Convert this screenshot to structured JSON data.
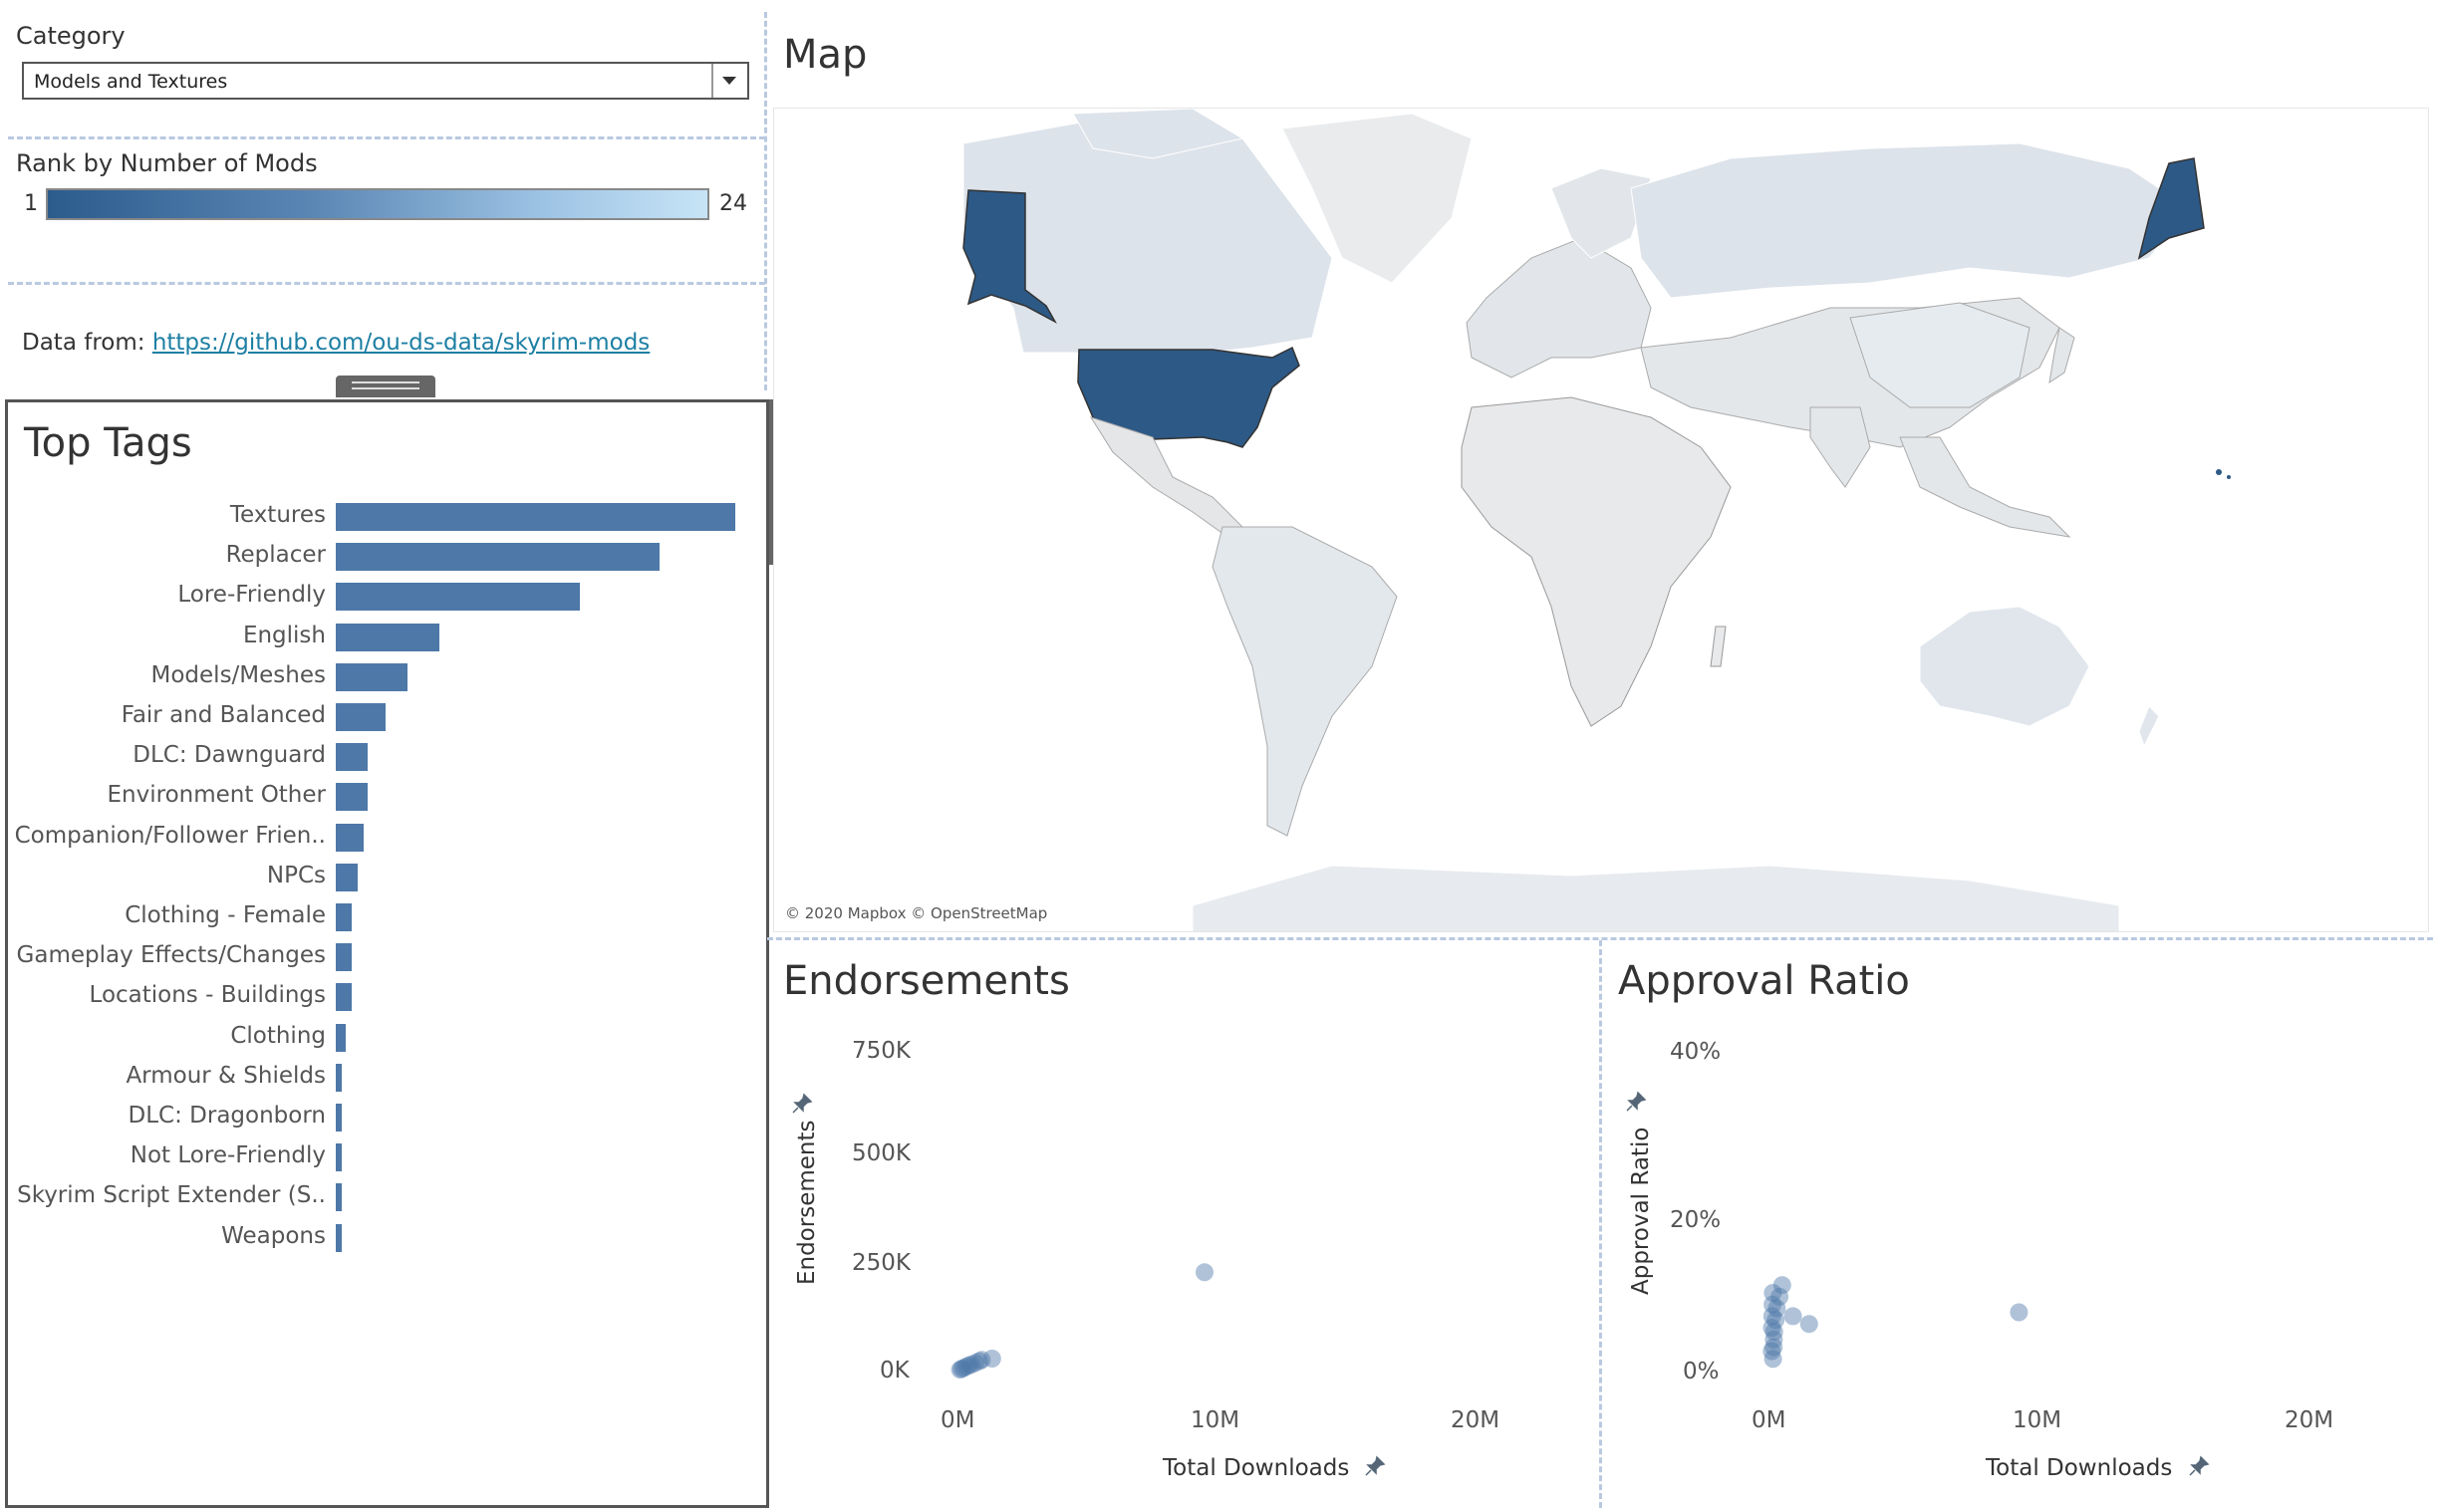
{
  "filters": {
    "category_label": "Category",
    "category_value": "Models and Textures",
    "rank_label": "Rank by Number of Mods",
    "rank_min": "1",
    "rank_max": "24",
    "data_from_prefix": "Data from: ",
    "data_from_link": "https://github.com/ou-ds-data/skyrim-mods"
  },
  "top_tags": {
    "title": "Top Tags",
    "bar_color": "#4e78a8",
    "tags": [
      {
        "label": "Textures",
        "value": 100
      },
      {
        "label": "Replacer",
        "value": 81
      },
      {
        "label": "Lore-Friendly",
        "value": 61
      },
      {
        "label": "English",
        "value": 26
      },
      {
        "label": "Models/Meshes",
        "value": 18
      },
      {
        "label": "Fair and Balanced",
        "value": 12.5
      },
      {
        "label": "DLC: Dawnguard",
        "value": 8
      },
      {
        "label": "Environment Other",
        "value": 8
      },
      {
        "label": "Companion/Follower Frien..",
        "value": 7
      },
      {
        "label": "NPCs",
        "value": 5.5
      },
      {
        "label": "Clothing - Female",
        "value": 4
      },
      {
        "label": "Gameplay Effects/Changes",
        "value": 4
      },
      {
        "label": "Locations - Buildings",
        "value": 4
      },
      {
        "label": "Clothing",
        "value": 2.5
      },
      {
        "label": "Armour & Shields",
        "value": 1.5
      },
      {
        "label": "DLC: Dragonborn",
        "value": 1.5
      },
      {
        "label": "Not Lore-Friendly",
        "value": 1.5
      },
      {
        "label": "Skyrim Script Extender (S..",
        "value": 1.5
      },
      {
        "label": "Weapons",
        "value": 1.5
      }
    ]
  },
  "map": {
    "title": "Map",
    "attribution": "© 2020 Mapbox © OpenStreetMap",
    "highlight_color": "#2d5986",
    "highlighted_country": "United States"
  },
  "chart_data": [
    {
      "type": "scatter",
      "title": "Endorsements",
      "xlabel": "Total Downloads",
      "ylabel": "Endorsements",
      "x_ticks": [
        "0M",
        "10M",
        "20M"
      ],
      "y_ticks": [
        "750K",
        "500K",
        "250K",
        "0K"
      ],
      "xlim": [
        0,
        20000000
      ],
      "ylim": [
        0,
        750000
      ],
      "points": [
        {
          "x": 9500000,
          "y": 230000
        },
        {
          "x": 1300000,
          "y": 28000
        },
        {
          "x": 900000,
          "y": 25000
        },
        {
          "x": 800000,
          "y": 22000
        },
        {
          "x": 650000,
          "y": 18000
        },
        {
          "x": 500000,
          "y": 14000
        },
        {
          "x": 400000,
          "y": 12000
        },
        {
          "x": 300000,
          "y": 9000
        },
        {
          "x": 200000,
          "y": 6000
        },
        {
          "x": 120000,
          "y": 4000
        },
        {
          "x": 60000,
          "y": 2000
        }
      ]
    },
    {
      "type": "scatter",
      "title": "Approval Ratio",
      "xlabel": "Total Downloads",
      "ylabel": "Approval Ratio",
      "x_ticks": [
        "0M",
        "10M",
        "20M"
      ],
      "y_ticks": [
        "40%",
        "20%",
        "0%"
      ],
      "xlim": [
        0,
        20000000
      ],
      "ylim": [
        0,
        40
      ],
      "points": [
        {
          "x": 9200000,
          "y": 7.5
        },
        {
          "x": 1400000,
          "y": 6
        },
        {
          "x": 800000,
          "y": 7
        },
        {
          "x": 400000,
          "y": 11
        },
        {
          "x": 300000,
          "y": 9.5
        },
        {
          "x": 200000,
          "y": 8
        },
        {
          "x": 150000,
          "y": 6.5
        },
        {
          "x": 100000,
          "y": 5
        },
        {
          "x": 90000,
          "y": 4
        },
        {
          "x": 80000,
          "y": 3
        },
        {
          "x": 60000,
          "y": 1.5
        },
        {
          "x": 50000,
          "y": 10
        },
        {
          "x": 40000,
          "y": 8.5
        },
        {
          "x": 30000,
          "y": 7
        },
        {
          "x": 20000,
          "y": 5.5
        },
        {
          "x": 10000,
          "y": 2.5
        }
      ]
    }
  ]
}
